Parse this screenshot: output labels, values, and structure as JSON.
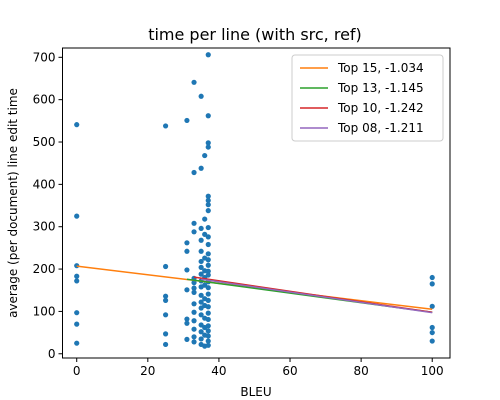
{
  "chart_data": {
    "type": "scatter",
    "title": "time per line (with src, ref)",
    "xlabel": "BLEU",
    "ylabel": "average (per document) line edit time",
    "xlim": [
      -4,
      105
    ],
    "ylim": [
      -10,
      722
    ],
    "xticks": [
      0,
      20,
      40,
      60,
      80,
      100
    ],
    "yticks": [
      0,
      100,
      200,
      300,
      400,
      500,
      600,
      700
    ],
    "grid": false,
    "legend_position": "top-right",
    "point_color": "#1f77b4",
    "points": [
      [
        0,
        541
      ],
      [
        0,
        325
      ],
      [
        0,
        208
      ],
      [
        0,
        183
      ],
      [
        0,
        172
      ],
      [
        0,
        97
      ],
      [
        0,
        70
      ],
      [
        0,
        25
      ],
      [
        25,
        538
      ],
      [
        25,
        206
      ],
      [
        25,
        136
      ],
      [
        25,
        126
      ],
      [
        25,
        92
      ],
      [
        25,
        47
      ],
      [
        25,
        22
      ],
      [
        31,
        551
      ],
      [
        31,
        262
      ],
      [
        31,
        242
      ],
      [
        31,
        198
      ],
      [
        31,
        151
      ],
      [
        31,
        82
      ],
      [
        31,
        72
      ],
      [
        31,
        34
      ],
      [
        33,
        641
      ],
      [
        33,
        428
      ],
      [
        33,
        308
      ],
      [
        33,
        288
      ],
      [
        33,
        178
      ],
      [
        33,
        168
      ],
      [
        33,
        155
      ],
      [
        33,
        145
      ],
      [
        33,
        118
      ],
      [
        33,
        98
      ],
      [
        33,
        78
      ],
      [
        33,
        58
      ],
      [
        33,
        40
      ],
      [
        33,
        28
      ],
      [
        35,
        608
      ],
      [
        35,
        438
      ],
      [
        35,
        296
      ],
      [
        35,
        268
      ],
      [
        35,
        242
      ],
      [
        35,
        218
      ],
      [
        35,
        204
      ],
      [
        35,
        188
      ],
      [
        35,
        172
      ],
      [
        35,
        158
      ],
      [
        35,
        138
      ],
      [
        35,
        122
      ],
      [
        35,
        108
      ],
      [
        35,
        92
      ],
      [
        35,
        68
      ],
      [
        35,
        52
      ],
      [
        35,
        35
      ],
      [
        35,
        22
      ],
      [
        36,
        468
      ],
      [
        36,
        318
      ],
      [
        36,
        282
      ],
      [
        36,
        226
      ],
      [
        36,
        196
      ],
      [
        36,
        180
      ],
      [
        36,
        162
      ],
      [
        36,
        130
      ],
      [
        36,
        114
      ],
      [
        36,
        84
      ],
      [
        36,
        62
      ],
      [
        36,
        44
      ],
      [
        36,
        18
      ],
      [
        37,
        706
      ],
      [
        37,
        562
      ],
      [
        37,
        498
      ],
      [
        37,
        488
      ],
      [
        37,
        372
      ],
      [
        37,
        362
      ],
      [
        37,
        352
      ],
      [
        37,
        338
      ],
      [
        37,
        298
      ],
      [
        37,
        276
      ],
      [
        37,
        258
      ],
      [
        37,
        236
      ],
      [
        37,
        222
      ],
      [
        37,
        209
      ],
      [
        37,
        195
      ],
      [
        37,
        186
      ],
      [
        37,
        170
      ],
      [
        37,
        156
      ],
      [
        37,
        141
      ],
      [
        37,
        126
      ],
      [
        37,
        111
      ],
      [
        37,
        96
      ],
      [
        37,
        81
      ],
      [
        37,
        66
      ],
      [
        37,
        54
      ],
      [
        37,
        42
      ],
      [
        37,
        30
      ],
      [
        37,
        20
      ],
      [
        100,
        180
      ],
      [
        100,
        165
      ],
      [
        100,
        112
      ],
      [
        100,
        62
      ],
      [
        100,
        50
      ],
      [
        100,
        30
      ]
    ],
    "series": [
      {
        "name": "Top 15, -1.034",
        "color": "#ff7f0e",
        "x": [
          0,
          100
        ],
        "y": [
          207,
          105
        ]
      },
      {
        "name": "Top 13, -1.145",
        "color": "#2ca02c",
        "x": [
          31,
          100
        ],
        "y": [
          176,
          98
        ]
      },
      {
        "name": "Top 10, -1.242",
        "color": "#d62728",
        "x": [
          33,
          100
        ],
        "y": [
          181,
          98
        ]
      },
      {
        "name": "Top 08, -1.211",
        "color": "#9467bd",
        "x": [
          35,
          100
        ],
        "y": [
          176,
          97
        ]
      }
    ]
  }
}
